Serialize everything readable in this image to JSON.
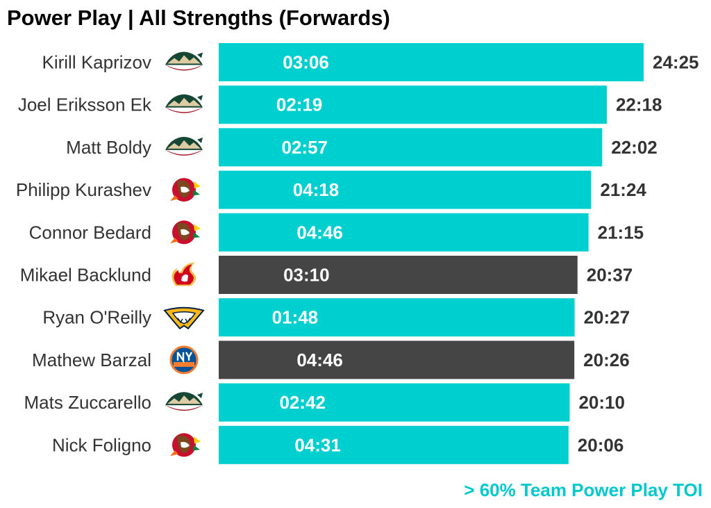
{
  "chart_data": {
    "type": "bar",
    "orientation": "horizontal",
    "title": "Power Play | All Strengths (Forwards)",
    "footnote": "> 60% Team Power Play TOI",
    "value_unit": "mm:ss",
    "colors": {
      "highlight": "#00cfd0",
      "other": "#454545",
      "footnote": "#00c8cc"
    },
    "rows": [
      {
        "player": "Kirill Kaprizov",
        "team_logo": "minnesota-wild-logo-icon",
        "total_toi": "24:25",
        "total_seconds": 1465,
        "pp_toi": "03:06",
        "pp_seconds": 186,
        "highlight": true
      },
      {
        "player": "Joel Eriksson Ek",
        "team_logo": "minnesota-wild-logo-icon",
        "total_toi": "22:18",
        "total_seconds": 1338,
        "pp_toi": "02:19",
        "pp_seconds": 139,
        "highlight": true
      },
      {
        "player": "Matt Boldy",
        "team_logo": "minnesota-wild-logo-icon",
        "total_toi": "22:02",
        "total_seconds": 1322,
        "pp_toi": "02:57",
        "pp_seconds": 177,
        "highlight": true
      },
      {
        "player": "Philipp Kurashev",
        "team_logo": "chicago-blackhawks-logo-icon",
        "total_toi": "21:24",
        "total_seconds": 1284,
        "pp_toi": "04:18",
        "pp_seconds": 258,
        "highlight": true
      },
      {
        "player": "Connor Bedard",
        "team_logo": "chicago-blackhawks-logo-icon",
        "total_toi": "21:15",
        "total_seconds": 1275,
        "pp_toi": "04:46",
        "pp_seconds": 286,
        "highlight": true
      },
      {
        "player": "Mikael Backlund",
        "team_logo": "calgary-flames-logo-icon",
        "total_toi": "20:37",
        "total_seconds": 1237,
        "pp_toi": "03:10",
        "pp_seconds": 190,
        "highlight": false
      },
      {
        "player": "Ryan O'Reilly",
        "team_logo": "nashville-predators-logo-icon",
        "total_toi": "20:27",
        "total_seconds": 1227,
        "pp_toi": "01:48",
        "pp_seconds": 108,
        "highlight": true
      },
      {
        "player": "Mathew Barzal",
        "team_logo": "new-york-islanders-logo-icon",
        "total_toi": "20:26",
        "total_seconds": 1226,
        "pp_toi": "04:46",
        "pp_seconds": 286,
        "highlight": false
      },
      {
        "player": "Mats Zuccarello",
        "team_logo": "minnesota-wild-logo-icon",
        "total_toi": "20:10",
        "total_seconds": 1210,
        "pp_toi": "02:42",
        "pp_seconds": 162,
        "highlight": true
      },
      {
        "player": "Nick Foligno",
        "team_logo": "chicago-blackhawks-logo-icon",
        "total_toi": "20:06",
        "total_seconds": 1206,
        "pp_toi": "04:31",
        "pp_seconds": 271,
        "highlight": true
      }
    ]
  }
}
